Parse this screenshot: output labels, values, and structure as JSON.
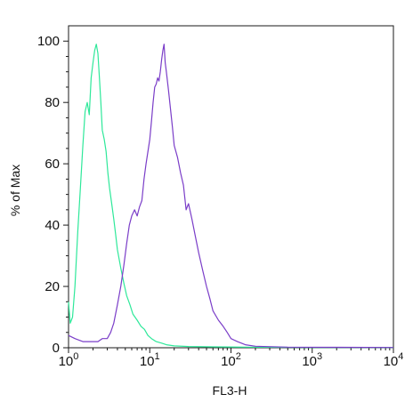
{
  "chart_data": {
    "type": "line",
    "title": "",
    "xlabel": "FL3-H",
    "ylabel": "% of Max",
    "x_scale": "log",
    "xlim": [
      1,
      10000
    ],
    "ylim": [
      0,
      105
    ],
    "x_ticks": [
      {
        "base": "10",
        "exp": "0",
        "value": 1
      },
      {
        "base": "10",
        "exp": "1",
        "value": 10
      },
      {
        "base": "10",
        "exp": "2",
        "value": 100
      },
      {
        "base": "10",
        "exp": "3",
        "value": 1000
      },
      {
        "base": "10",
        "exp": "4",
        "value": 10000
      }
    ],
    "y_ticks": [
      "0",
      "20",
      "40",
      "60",
      "80",
      "100"
    ],
    "grid": false,
    "series": [
      {
        "color": "#2ee89a",
        "x": [
          1.0,
          1.05,
          1.12,
          1.2,
          1.3,
          1.4,
          1.5,
          1.6,
          1.7,
          1.8,
          1.9,
          2.0,
          2.1,
          2.2,
          2.3,
          2.4,
          2.5,
          2.6,
          2.75,
          2.9,
          3.05,
          3.2,
          3.4,
          3.6,
          3.8,
          4.0,
          4.4,
          4.8,
          5.2,
          5.7,
          6.2,
          7.0,
          7.8,
          8.6,
          9.5,
          10.5,
          12.0,
          14.0,
          16.0,
          20.0,
          30.0,
          60.0,
          150.0,
          1000.0,
          10000.0
        ],
        "y": [
          15,
          8,
          10,
          20,
          38,
          52,
          66,
          77,
          80,
          76,
          88,
          93,
          97,
          99,
          96,
          88,
          80,
          71,
          68,
          64,
          57,
          52,
          47,
          42,
          37,
          32,
          26,
          21,
          17,
          14,
          11,
          9,
          7,
          6,
          4,
          3,
          2,
          1.5,
          1,
          0.6,
          0.4,
          0.3,
          0.2,
          0.1,
          0.1
        ]
      },
      {
        "color": "#7a3dc8",
        "x": [
          1.0,
          1.2,
          1.5,
          1.8,
          2.0,
          2.3,
          2.6,
          3.0,
          3.3,
          3.6,
          4.0,
          4.4,
          4.8,
          5.2,
          5.6,
          6.0,
          6.5,
          7.0,
          7.5,
          8.0,
          8.5,
          9.0,
          9.5,
          10.0,
          10.5,
          11.0,
          11.5,
          12.0,
          12.5,
          13.0,
          13.5,
          14.0,
          14.5,
          15.0,
          15.5,
          16.0,
          17.0,
          18.0,
          19.0,
          20.0,
          22.0,
          24.0,
          26.0,
          28.0,
          30.0,
          33.0,
          36.0,
          40.0,
          45.0,
          50.0,
          55.0,
          60.0,
          70.0,
          80.0,
          90.0,
          100.0,
          120.0,
          150.0,
          200.0,
          500.0,
          10000.0
        ],
        "y": [
          4,
          3,
          2,
          2,
          2,
          2,
          3,
          3,
          5,
          8,
          14,
          20,
          27,
          34,
          40,
          43,
          45,
          43,
          46,
          48,
          55,
          60,
          64,
          68,
          74,
          80,
          85,
          86,
          88,
          87,
          90,
          94,
          97,
          99,
          93,
          90,
          84,
          78,
          72,
          66,
          62,
          57,
          53,
          45,
          47,
          42,
          37,
          31,
          25,
          20,
          16,
          12,
          9,
          7,
          5,
          3,
          2,
          1,
          0.5,
          0.2,
          0.1
        ]
      }
    ]
  }
}
